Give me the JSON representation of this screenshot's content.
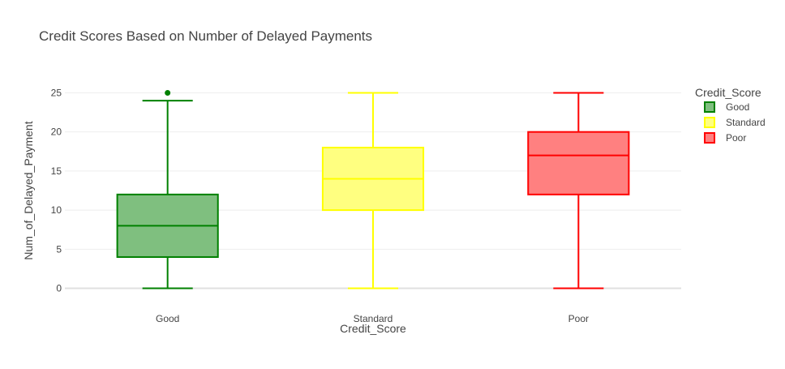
{
  "chart_data": {
    "type": "box",
    "title": "Credit Scores Based on Number of Delayed Payments",
    "xlabel": "Credit_Score",
    "ylabel": "Num_of_Delayed_Payment",
    "ylim": [
      -1.5,
      26.5
    ],
    "yticks": [
      0,
      5,
      10,
      15,
      20,
      25
    ],
    "grid": true,
    "legend": {
      "title": "Credit_Score",
      "placement": "right"
    },
    "categories": [
      "Good",
      "Standard",
      "Poor"
    ],
    "series": [
      {
        "name": "Good",
        "color": "#008000",
        "fill": "#7fbf7f",
        "min": 0,
        "q1": 4,
        "median": 8,
        "q3": 12,
        "max": 24,
        "outliers": [
          25
        ]
      },
      {
        "name": "Standard",
        "color": "#ffff00",
        "fill": "#ffff80",
        "min": 0,
        "q1": 10,
        "median": 14,
        "q3": 18,
        "max": 25,
        "outliers": []
      },
      {
        "name": "Poor",
        "color": "#ff0000",
        "fill": "#ff8080",
        "min": 0,
        "q1": 12,
        "median": 17,
        "q3": 20,
        "max": 25,
        "outliers": []
      }
    ]
  }
}
